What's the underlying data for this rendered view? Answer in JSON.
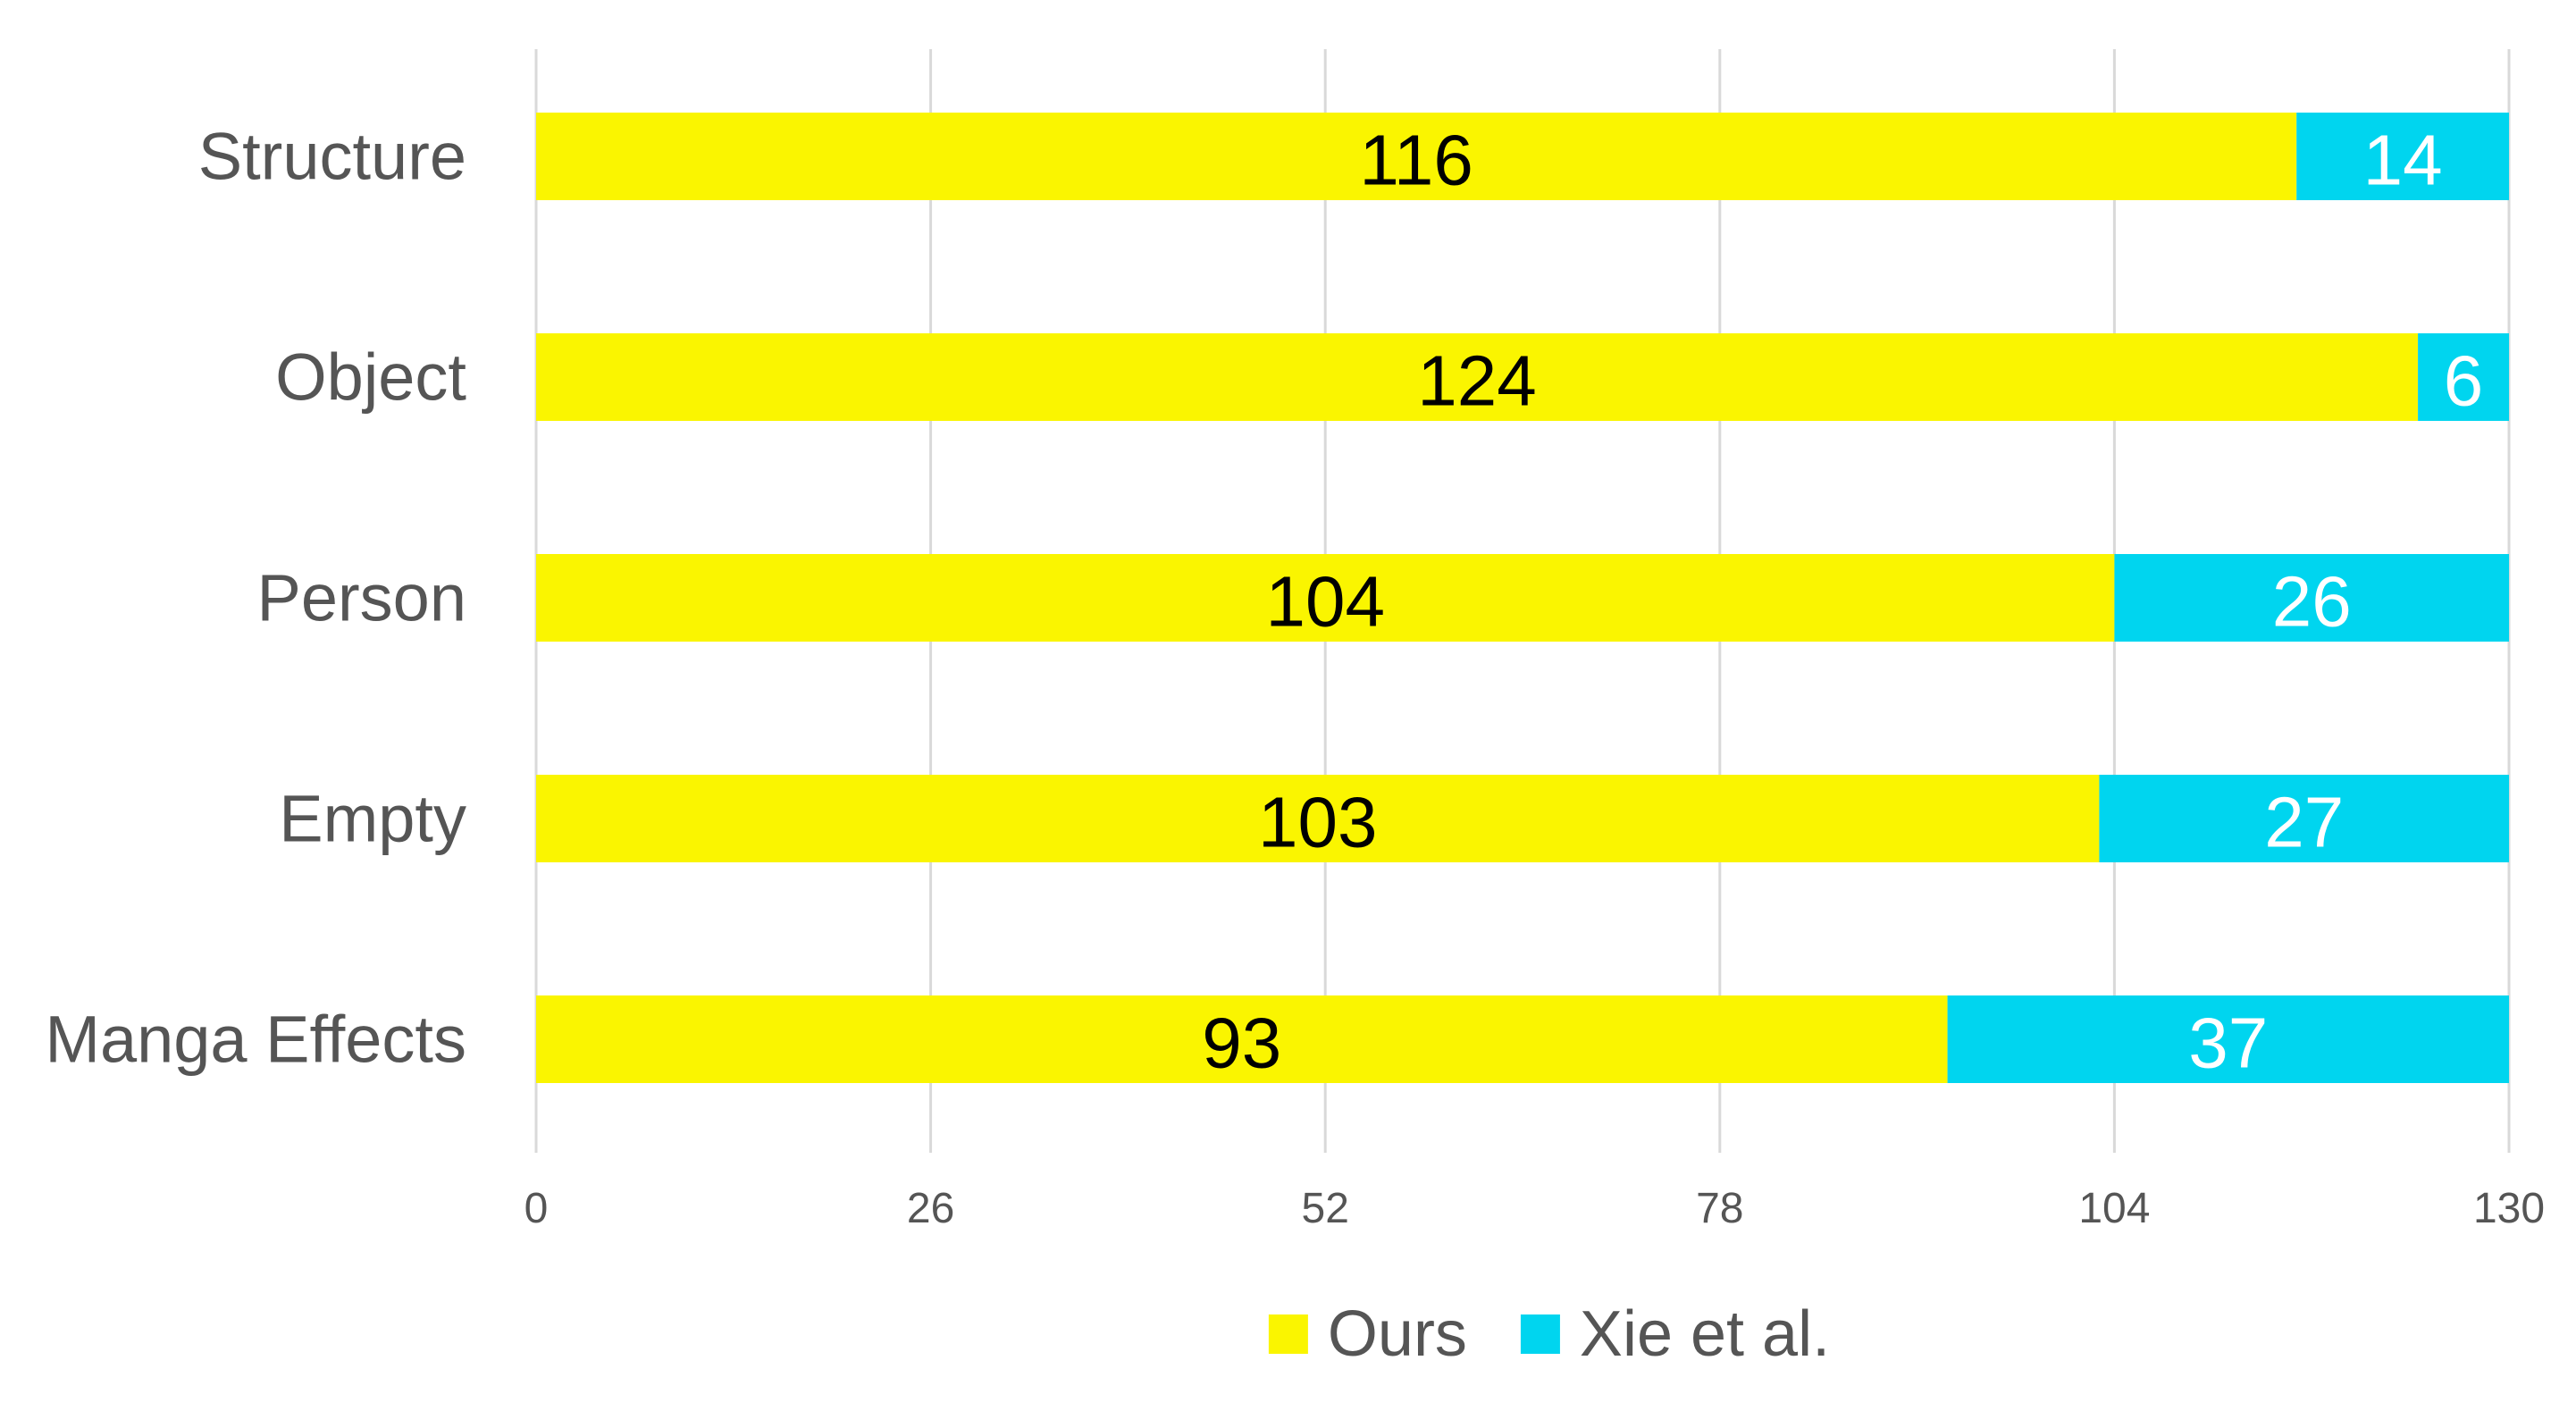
{
  "chart_data": {
    "type": "bar",
    "orientation": "horizontal",
    "stacked": true,
    "categories": [
      "Structure",
      "Object",
      "Person",
      "Empty",
      "Manga Effects"
    ],
    "series": [
      {
        "name": "Ours",
        "values": [
          116,
          124,
          104,
          103,
          93
        ],
        "color": "#FAF500",
        "label_color": "#000000"
      },
      {
        "name": "Xie et al.",
        "values": [
          14,
          6,
          26,
          27,
          37
        ],
        "color": "#00D5EF",
        "label_color": "#FFFFFF"
      }
    ],
    "xlim": [
      0,
      130
    ],
    "xticks": [
      0,
      26,
      52,
      78,
      104,
      130
    ],
    "grid": "vertical",
    "legend_position": "bottom",
    "title": "",
    "xlabel": "",
    "ylabel": ""
  }
}
